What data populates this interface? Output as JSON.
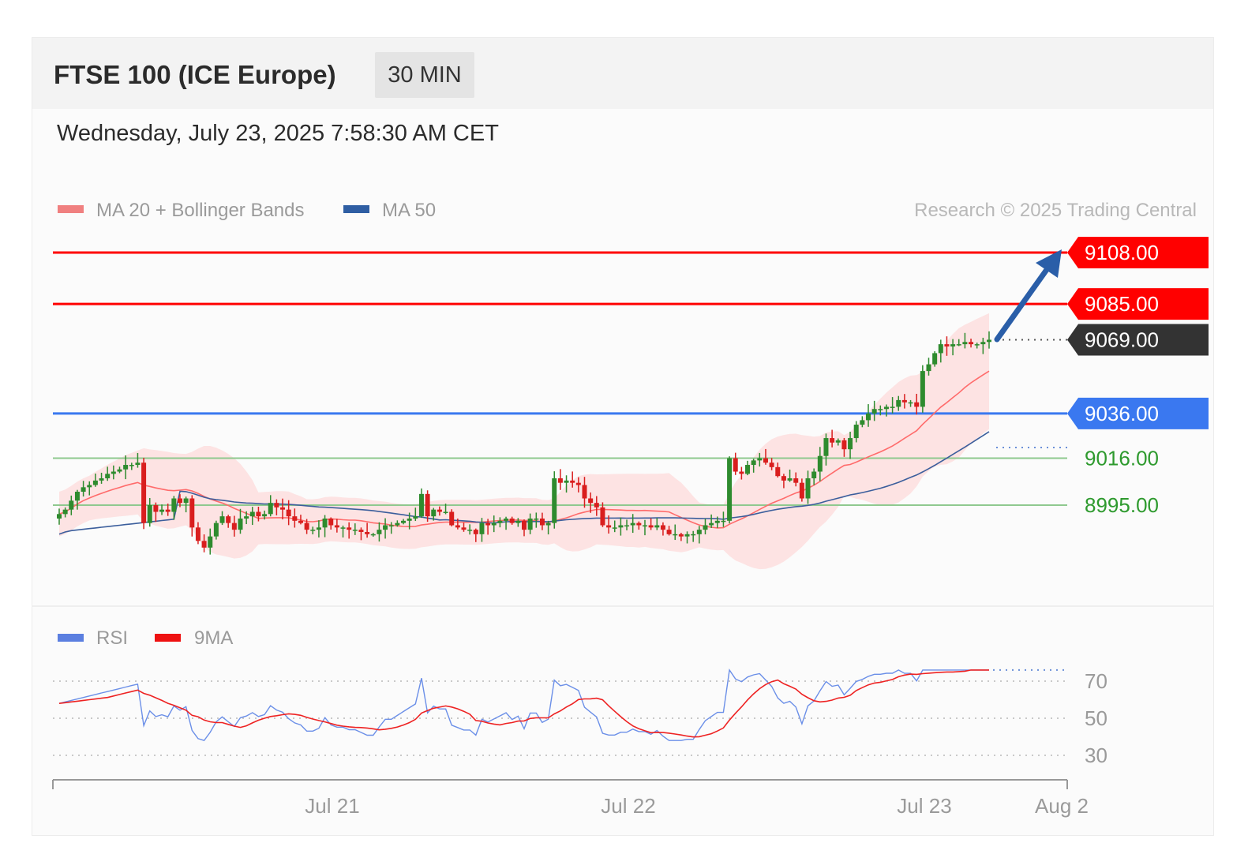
{
  "header": {
    "instrument": "FTSE 100 (ICE Europe)",
    "timeframe": "30 MIN",
    "datetime": "Wednesday, July 23, 2025 7:58:30 AM CET"
  },
  "legend": {
    "ma20_bb": "MA 20 + Bollinger Bands",
    "ma50": "MA 50",
    "credit": "Research © 2025 Trading Central",
    "rsi": "RSI",
    "rsi_ma": "9MA"
  },
  "colors": {
    "resistance": "#ff0000",
    "pivot": "#3a78f0",
    "support": "#2e9a2e",
    "last_price": "#333333",
    "up_candle": "#2e8b2e",
    "down_candle": "#d91e1e",
    "bollinger_fill": "#fde3e3",
    "ma20": "#ff6b6b",
    "ma50": "#3b5e9c",
    "rsi": "#6b8fe8",
    "rsi_ma": "#ee2222",
    "arrow": "#2a5ea8"
  },
  "chart_data": [
    {
      "type": "line",
      "subtype": "candlestick",
      "x_labels": [
        "Jul 21",
        "Jul 22",
        "Jul 23",
        "Aug 2"
      ],
      "ylim": [
        8950,
        9125
      ],
      "levels": [
        {
          "name": "resistance",
          "value": 9108.0,
          "label": "9108.00",
          "color": "#ff0000"
        },
        {
          "name": "resistance",
          "value": 9085.0,
          "label": "9085.00",
          "color": "#ff0000"
        },
        {
          "name": "last_price",
          "value": 9069.0,
          "label": "9069.00",
          "color": "#333333"
        },
        {
          "name": "pivot",
          "value": 9036.0,
          "label": "9036.00",
          "color": "#3a78f0"
        },
        {
          "name": "support",
          "value": 9016.0,
          "label": "9016.00",
          "color": "#2e9a2e"
        },
        {
          "name": "support",
          "value": 8995.0,
          "label": "8995.00",
          "color": "#2e9a2e"
        }
      ],
      "close": [
        8991,
        8993,
        8997,
        9001,
        9003,
        9004,
        9006,
        9007,
        9009,
        9010,
        9011,
        9013,
        9013,
        9014,
        8987,
        8995,
        8992,
        8993,
        8992,
        8998,
        8996,
        8998,
        8985,
        8979,
        8976,
        8981,
        8987,
        8990,
        8987,
        8984,
        8989,
        8990,
        8992,
        8990,
        8991,
        8996,
        8994,
        8993,
        8990,
        8988,
        8987,
        8984,
        8984,
        8985,
        8989,
        8986,
        8985,
        8985,
        8984,
        8984,
        8983,
        8982,
        8982,
        8984,
        8986,
        8986,
        8987,
        8988,
        8989,
        8990,
        9000,
        8990,
        8993,
        8992,
        8992,
        8986,
        8985,
        8984,
        8984,
        8982,
        8987,
        8986,
        8987,
        8988,
        8989,
        8987,
        8988,
        8984,
        8989,
        8989,
        8986,
        8987,
        9007,
        9005,
        9006,
        9005,
        9004,
        8998,
        8996,
        8994,
        8986,
        8985,
        8985,
        8986,
        8986,
        8987,
        8986,
        8986,
        8985,
        8986,
        8984,
        8982,
        8982,
        8981,
        8982,
        8982,
        8984,
        8986,
        8987,
        8988,
        8988,
        9016,
        9010,
        9009,
        9013,
        9015,
        9016,
        9014,
        9012,
        9008,
        9006,
        9007,
        9005,
        8998,
        9007,
        9010,
        9017,
        9025,
        9023,
        9024,
        9020,
        9025,
        9031,
        9033,
        9036,
        9038,
        9038,
        9039,
        9039,
        9042,
        9041,
        9041,
        9039,
        9055,
        9058,
        9063,
        9067,
        9066,
        9067,
        9067,
        9068,
        9067,
        9067,
        9068,
        9069
      ]
    },
    {
      "type": "line",
      "series": [
        {
          "name": "RSI"
        },
        {
          "name": "9MA"
        }
      ],
      "y_ticks": [
        70,
        50,
        30
      ],
      "ylim": [
        25,
        80
      ]
    }
  ]
}
